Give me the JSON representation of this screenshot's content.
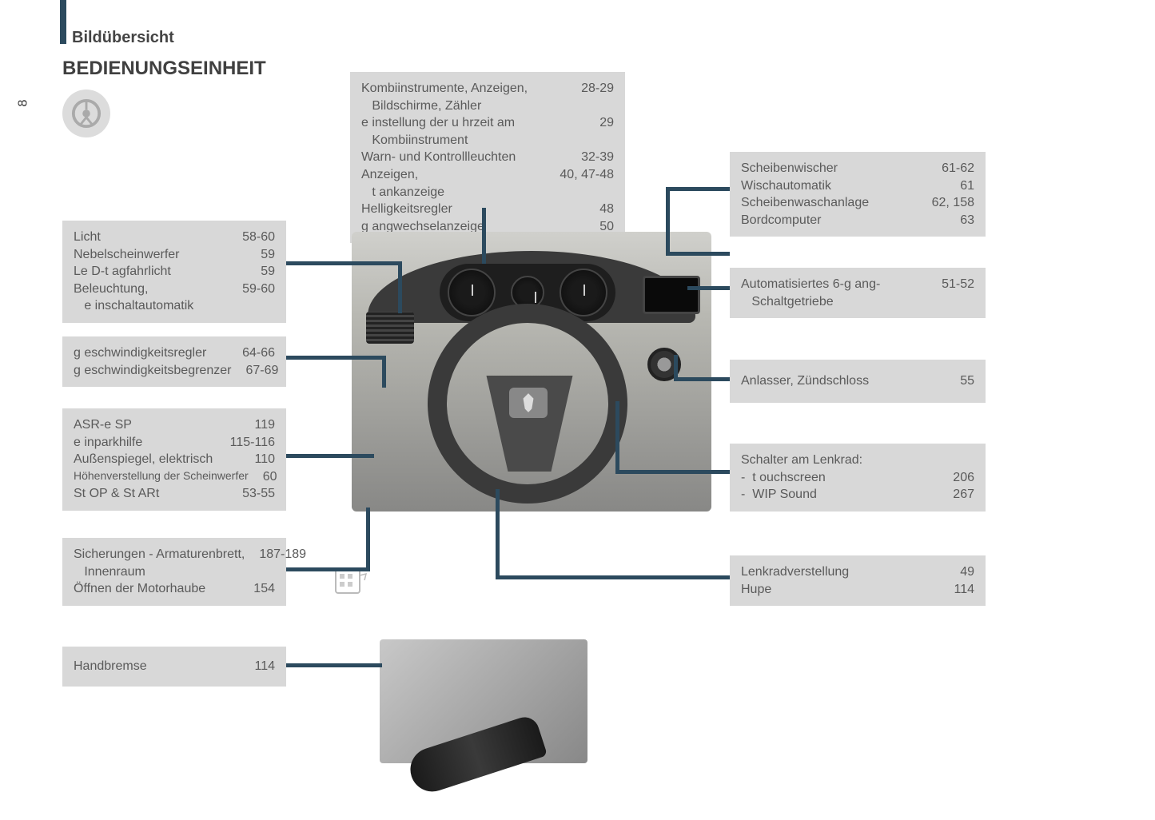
{
  "page_number": "8",
  "section_label": "Bildübersicht",
  "title": "BEDIENUNGSEINHEIT",
  "colors": {
    "box_bg": "#d8d8d8",
    "connector": "#2c4a5e",
    "text": "#5a5a5a",
    "title_text": "#404040"
  },
  "boxes": {
    "top_center": {
      "rows": [
        {
          "label": "Kombiinstrumente, Anzeigen,\n   Bildschirme, Zähler",
          "pages": "28-29"
        },
        {
          "label": "e instellung der u hrzeit am\n   Kombiinstrument",
          "pages": "29"
        },
        {
          "label": "Warn- und Kontrollleuchten",
          "pages": "32-39"
        },
        {
          "label": "Anzeigen,\n   t ankanzeige",
          "pages": "40, 47-48"
        },
        {
          "label": "Helligkeitsregler",
          "pages": "48"
        },
        {
          "label": "g angwechselanzeige",
          "pages": "50"
        }
      ]
    },
    "left1": {
      "rows": [
        {
          "label": "Licht",
          "pages": "58-60"
        },
        {
          "label": "Nebelscheinwerfer",
          "pages": "59"
        },
        {
          "label": "Le D-t agfahrlicht",
          "pages": "59"
        },
        {
          "label": "Beleuchtung,\n   e inschaltautomatik",
          "pages": "59-60"
        }
      ]
    },
    "left2": {
      "rows": [
        {
          "label": "g eschwindigkeitsregler",
          "pages": "64-66"
        },
        {
          "label": "g eschwindigkeitsbegrenzer",
          "pages": "67-69"
        }
      ]
    },
    "left3": {
      "rows": [
        {
          "label": "ASR-e SP",
          "pages": "119"
        },
        {
          "label": "e inparkhilfe",
          "pages": "115-116"
        },
        {
          "label": "Außenspiegel, elektrisch",
          "pages": "110"
        },
        {
          "label": "Höhenverstellung der Scheinwerfer",
          "pages": "60"
        },
        {
          "label": "St OP & St ARt",
          "pages": "53-55"
        }
      ]
    },
    "left4": {
      "rows": [
        {
          "label": "Sicherungen - Armaturenbrett,\n   Innenraum",
          "pages": "187-189"
        },
        {
          "label": "Öffnen der Motorhaube",
          "pages": "154"
        }
      ]
    },
    "left5": {
      "rows": [
        {
          "label": "Handbremse",
          "pages": "114"
        }
      ]
    },
    "right1": {
      "rows": [
        {
          "label": "Scheibenwischer",
          "pages": "61-62"
        },
        {
          "label": "Wischautomatik",
          "pages": "61"
        },
        {
          "label": "Scheibenwaschanlage",
          "pages": "62, 158"
        },
        {
          "label": "Bordcomputer",
          "pages": "63"
        }
      ]
    },
    "right2": {
      "rows": [
        {
          "label": "Automatisiertes 6-g ang-\n   Schaltgetriebe",
          "pages": "51-52"
        }
      ]
    },
    "right3": {
      "rows": [
        {
          "label": "Anlasser, Zündschloss",
          "pages": "55"
        }
      ]
    },
    "right4": {
      "rows": [
        {
          "label": "Schalter am Lenkrad:",
          "pages": ""
        },
        {
          "label": "-  t ouchscreen",
          "pages": "206"
        },
        {
          "label": "-  WIP Sound",
          "pages": "267"
        }
      ]
    },
    "right5": {
      "rows": [
        {
          "label": "Lenkradverstellung",
          "pages": "49"
        },
        {
          "label": "Hupe",
          "pages": "114"
        }
      ]
    }
  }
}
